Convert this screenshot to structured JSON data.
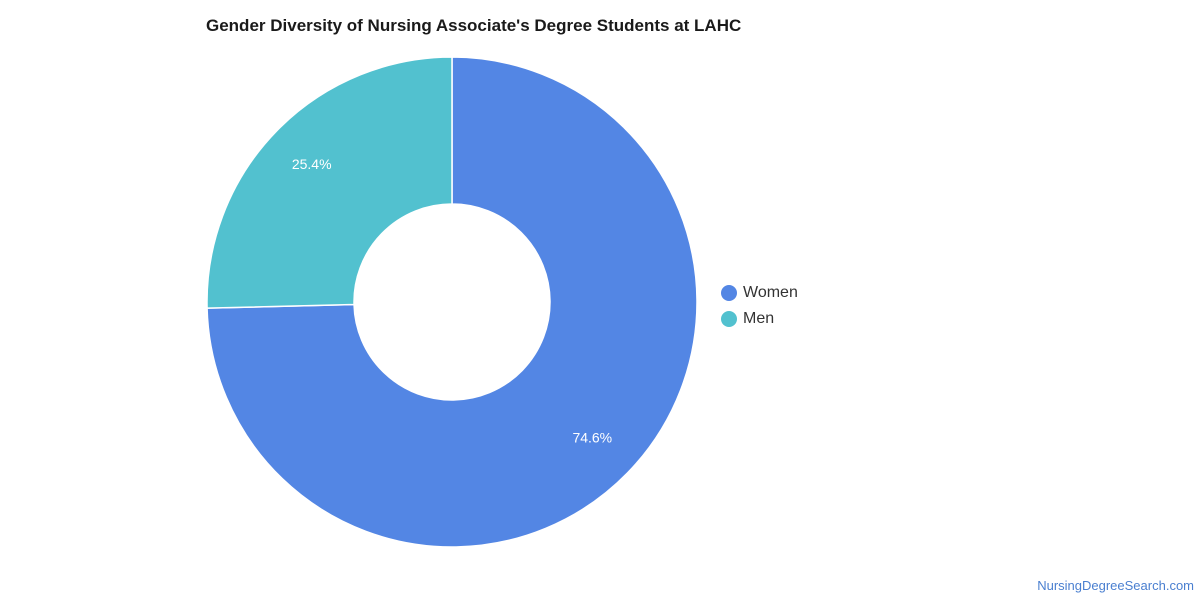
{
  "chart_data": {
    "type": "pie",
    "variant": "donut",
    "title": "Gender Diversity of Nursing Associate's Degree Students at LAHC",
    "categories": [
      "Women",
      "Men"
    ],
    "values": [
      74.6,
      25.4
    ],
    "labels": [
      "74.6%",
      "25.4%"
    ],
    "colors": [
      "#5386e4",
      "#52c1cf"
    ],
    "legend_placement": "right",
    "start_angle": "top",
    "direction": "clockwise"
  },
  "watermark": "NursingDegreeSearch.com"
}
